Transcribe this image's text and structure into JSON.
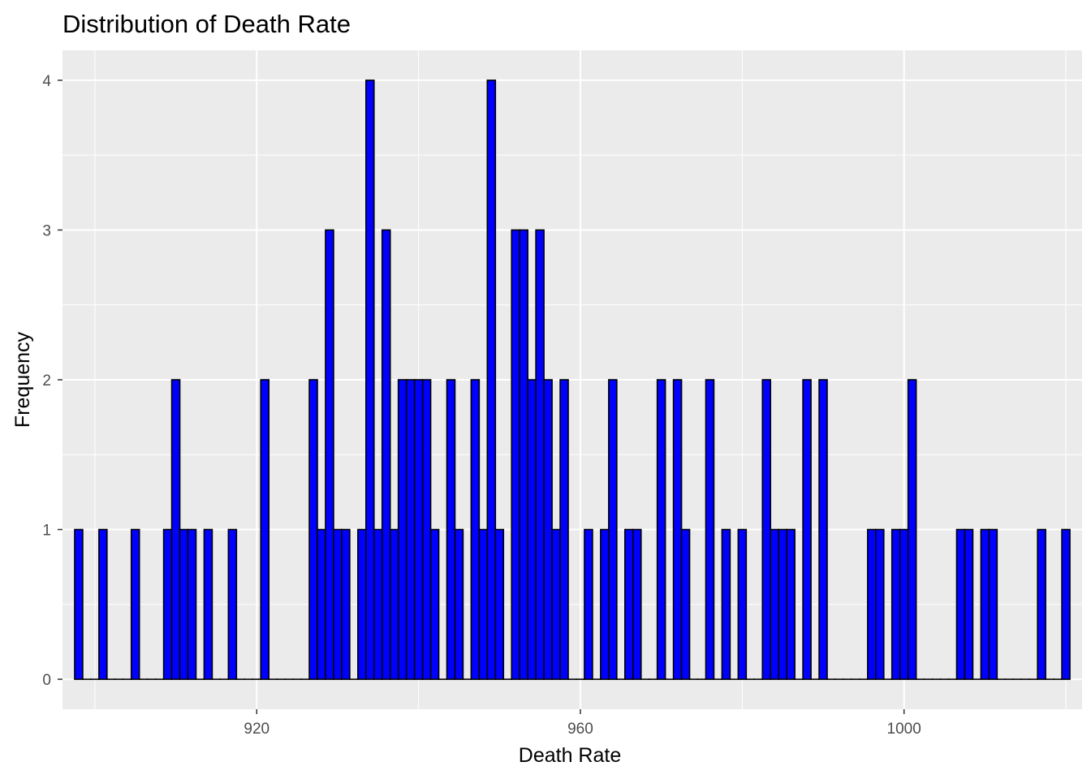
{
  "chart_data": {
    "type": "bar",
    "title": "Distribution of Death Rate",
    "xlabel": "Death Rate",
    "ylabel": "Frequency",
    "xlim": [
      896,
      1022
    ],
    "ylim": [
      -0.2,
      4.2
    ],
    "xticks": [
      920,
      960,
      1000
    ],
    "yticks": [
      0,
      1,
      2,
      3,
      4
    ],
    "binwidth": 1,
    "grid": true,
    "legend": "none",
    "colors": {
      "fill": "#0000ff",
      "outline": "#000000",
      "panel": "#ebebeb",
      "grid": "#ffffff"
    },
    "bins": [
      {
        "x": 898,
        "count": 1
      },
      {
        "x": 901,
        "count": 1
      },
      {
        "x": 905,
        "count": 1
      },
      {
        "x": 909,
        "count": 1
      },
      {
        "x": 910,
        "count": 2
      },
      {
        "x": 911,
        "count": 1
      },
      {
        "x": 912,
        "count": 1
      },
      {
        "x": 914,
        "count": 1
      },
      {
        "x": 917,
        "count": 1
      },
      {
        "x": 921,
        "count": 2
      },
      {
        "x": 927,
        "count": 2
      },
      {
        "x": 928,
        "count": 1
      },
      {
        "x": 929,
        "count": 3
      },
      {
        "x": 930,
        "count": 1
      },
      {
        "x": 931,
        "count": 1
      },
      {
        "x": 933,
        "count": 1
      },
      {
        "x": 934,
        "count": 4
      },
      {
        "x": 935,
        "count": 1
      },
      {
        "x": 936,
        "count": 3
      },
      {
        "x": 937,
        "count": 1
      },
      {
        "x": 938,
        "count": 2
      },
      {
        "x": 939,
        "count": 2
      },
      {
        "x": 940,
        "count": 2
      },
      {
        "x": 941,
        "count": 2
      },
      {
        "x": 942,
        "count": 1
      },
      {
        "x": 944,
        "count": 2
      },
      {
        "x": 945,
        "count": 1
      },
      {
        "x": 947,
        "count": 2
      },
      {
        "x": 948,
        "count": 1
      },
      {
        "x": 949,
        "count": 4
      },
      {
        "x": 950,
        "count": 1
      },
      {
        "x": 952,
        "count": 3
      },
      {
        "x": 953,
        "count": 3
      },
      {
        "x": 954,
        "count": 2
      },
      {
        "x": 955,
        "count": 3
      },
      {
        "x": 956,
        "count": 2
      },
      {
        "x": 957,
        "count": 1
      },
      {
        "x": 958,
        "count": 2
      },
      {
        "x": 961,
        "count": 1
      },
      {
        "x": 963,
        "count": 1
      },
      {
        "x": 964,
        "count": 2
      },
      {
        "x": 966,
        "count": 1
      },
      {
        "x": 967,
        "count": 1
      },
      {
        "x": 970,
        "count": 2
      },
      {
        "x": 972,
        "count": 2
      },
      {
        "x": 973,
        "count": 1
      },
      {
        "x": 976,
        "count": 2
      },
      {
        "x": 978,
        "count": 1
      },
      {
        "x": 980,
        "count": 1
      },
      {
        "x": 983,
        "count": 2
      },
      {
        "x": 984,
        "count": 1
      },
      {
        "x": 985,
        "count": 1
      },
      {
        "x": 986,
        "count": 1
      },
      {
        "x": 988,
        "count": 2
      },
      {
        "x": 990,
        "count": 2
      },
      {
        "x": 996,
        "count": 1
      },
      {
        "x": 997,
        "count": 1
      },
      {
        "x": 999,
        "count": 1
      },
      {
        "x": 1000,
        "count": 1
      },
      {
        "x": 1001,
        "count": 2
      },
      {
        "x": 1007,
        "count": 1
      },
      {
        "x": 1008,
        "count": 1
      },
      {
        "x": 1010,
        "count": 1
      },
      {
        "x": 1011,
        "count": 1
      },
      {
        "x": 1017,
        "count": 1
      },
      {
        "x": 1020,
        "count": 1
      }
    ]
  }
}
